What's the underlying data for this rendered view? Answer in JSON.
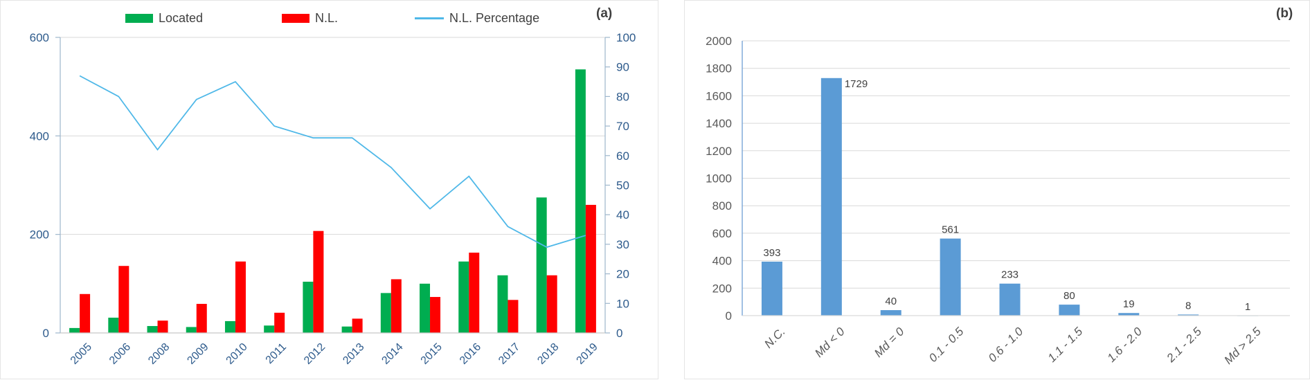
{
  "figure": {
    "background": "#ffffff",
    "panel_a_label": "(a)",
    "panel_b_label": "(b)"
  },
  "colors": {
    "located_green": "#00AD50",
    "nl_red": "#FF0000",
    "pct_line_blue": "#4FB8E8",
    "bar_blue": "#5B9BD5",
    "grid_gray": "#D9D9D9",
    "axis_gray": "#C6C6C6",
    "axis_blue_gray": "#9DB6CC",
    "axis_b_blue": "#6E9FD4",
    "label_blue": "#2E5B8C",
    "label_gray": "#595959",
    "data_label_dark": "#404040"
  },
  "chart_data": [
    {
      "id": "a",
      "type": "combo-bar-line",
      "panel_label": "(a)",
      "grid": true,
      "legend_position": "top",
      "categories": [
        "2005",
        "2006",
        "2008",
        "2009",
        "2010",
        "2011",
        "2012",
        "2013",
        "2014",
        "2015",
        "2016",
        "2017",
        "2018",
        "2019"
      ],
      "series": [
        {
          "name": "Located",
          "kind": "bar",
          "axis": "left",
          "color": "#00AD50",
          "values": [
            10,
            31,
            14,
            12,
            24,
            15,
            104,
            13,
            81,
            100,
            145,
            117,
            275,
            535
          ]
        },
        {
          "name": "N.L.",
          "kind": "bar",
          "axis": "left",
          "color": "#FF0000",
          "values": [
            79,
            136,
            25,
            59,
            145,
            41,
            207,
            29,
            109,
            73,
            163,
            67,
            117,
            260
          ]
        },
        {
          "name": "N.L. Percentage",
          "kind": "line",
          "axis": "right",
          "color": "#4FB8E8",
          "values": [
            87,
            80,
            62,
            79,
            85,
            70,
            66,
            66,
            56,
            42,
            53,
            36,
            29,
            33
          ]
        }
      ],
      "left_axis": {
        "min": 0,
        "max": 600,
        "step": 200,
        "tick_labels": [
          "0",
          "200",
          "400",
          "600"
        ]
      },
      "right_axis": {
        "min": 0,
        "max": 100,
        "step": 10,
        "tick_labels": [
          "0",
          "10",
          "20",
          "30",
          "40",
          "50",
          "60",
          "70",
          "80",
          "90",
          "100"
        ]
      }
    },
    {
      "id": "b",
      "type": "bar",
      "panel_label": "(b)",
      "grid": true,
      "bar_color": "#5B9BD5",
      "data_labels_shown": true,
      "categories": [
        "N.C.",
        "Md < 0",
        "Md = 0",
        "0.1 - 0.5",
        "0.6 - 1.0",
        "1.1 - 1.5",
        "1.6 - 2.0",
        "2.1 - 2.5",
        "Md > 2.5"
      ],
      "values": [
        393,
        1729,
        40,
        561,
        233,
        80,
        19,
        8,
        1
      ],
      "y_axis": {
        "min": 0,
        "max": 2000,
        "step": 200,
        "tick_labels": [
          "0",
          "200",
          "400",
          "600",
          "800",
          "1000",
          "1200",
          "1400",
          "1600",
          "1800",
          "2000"
        ]
      }
    }
  ]
}
